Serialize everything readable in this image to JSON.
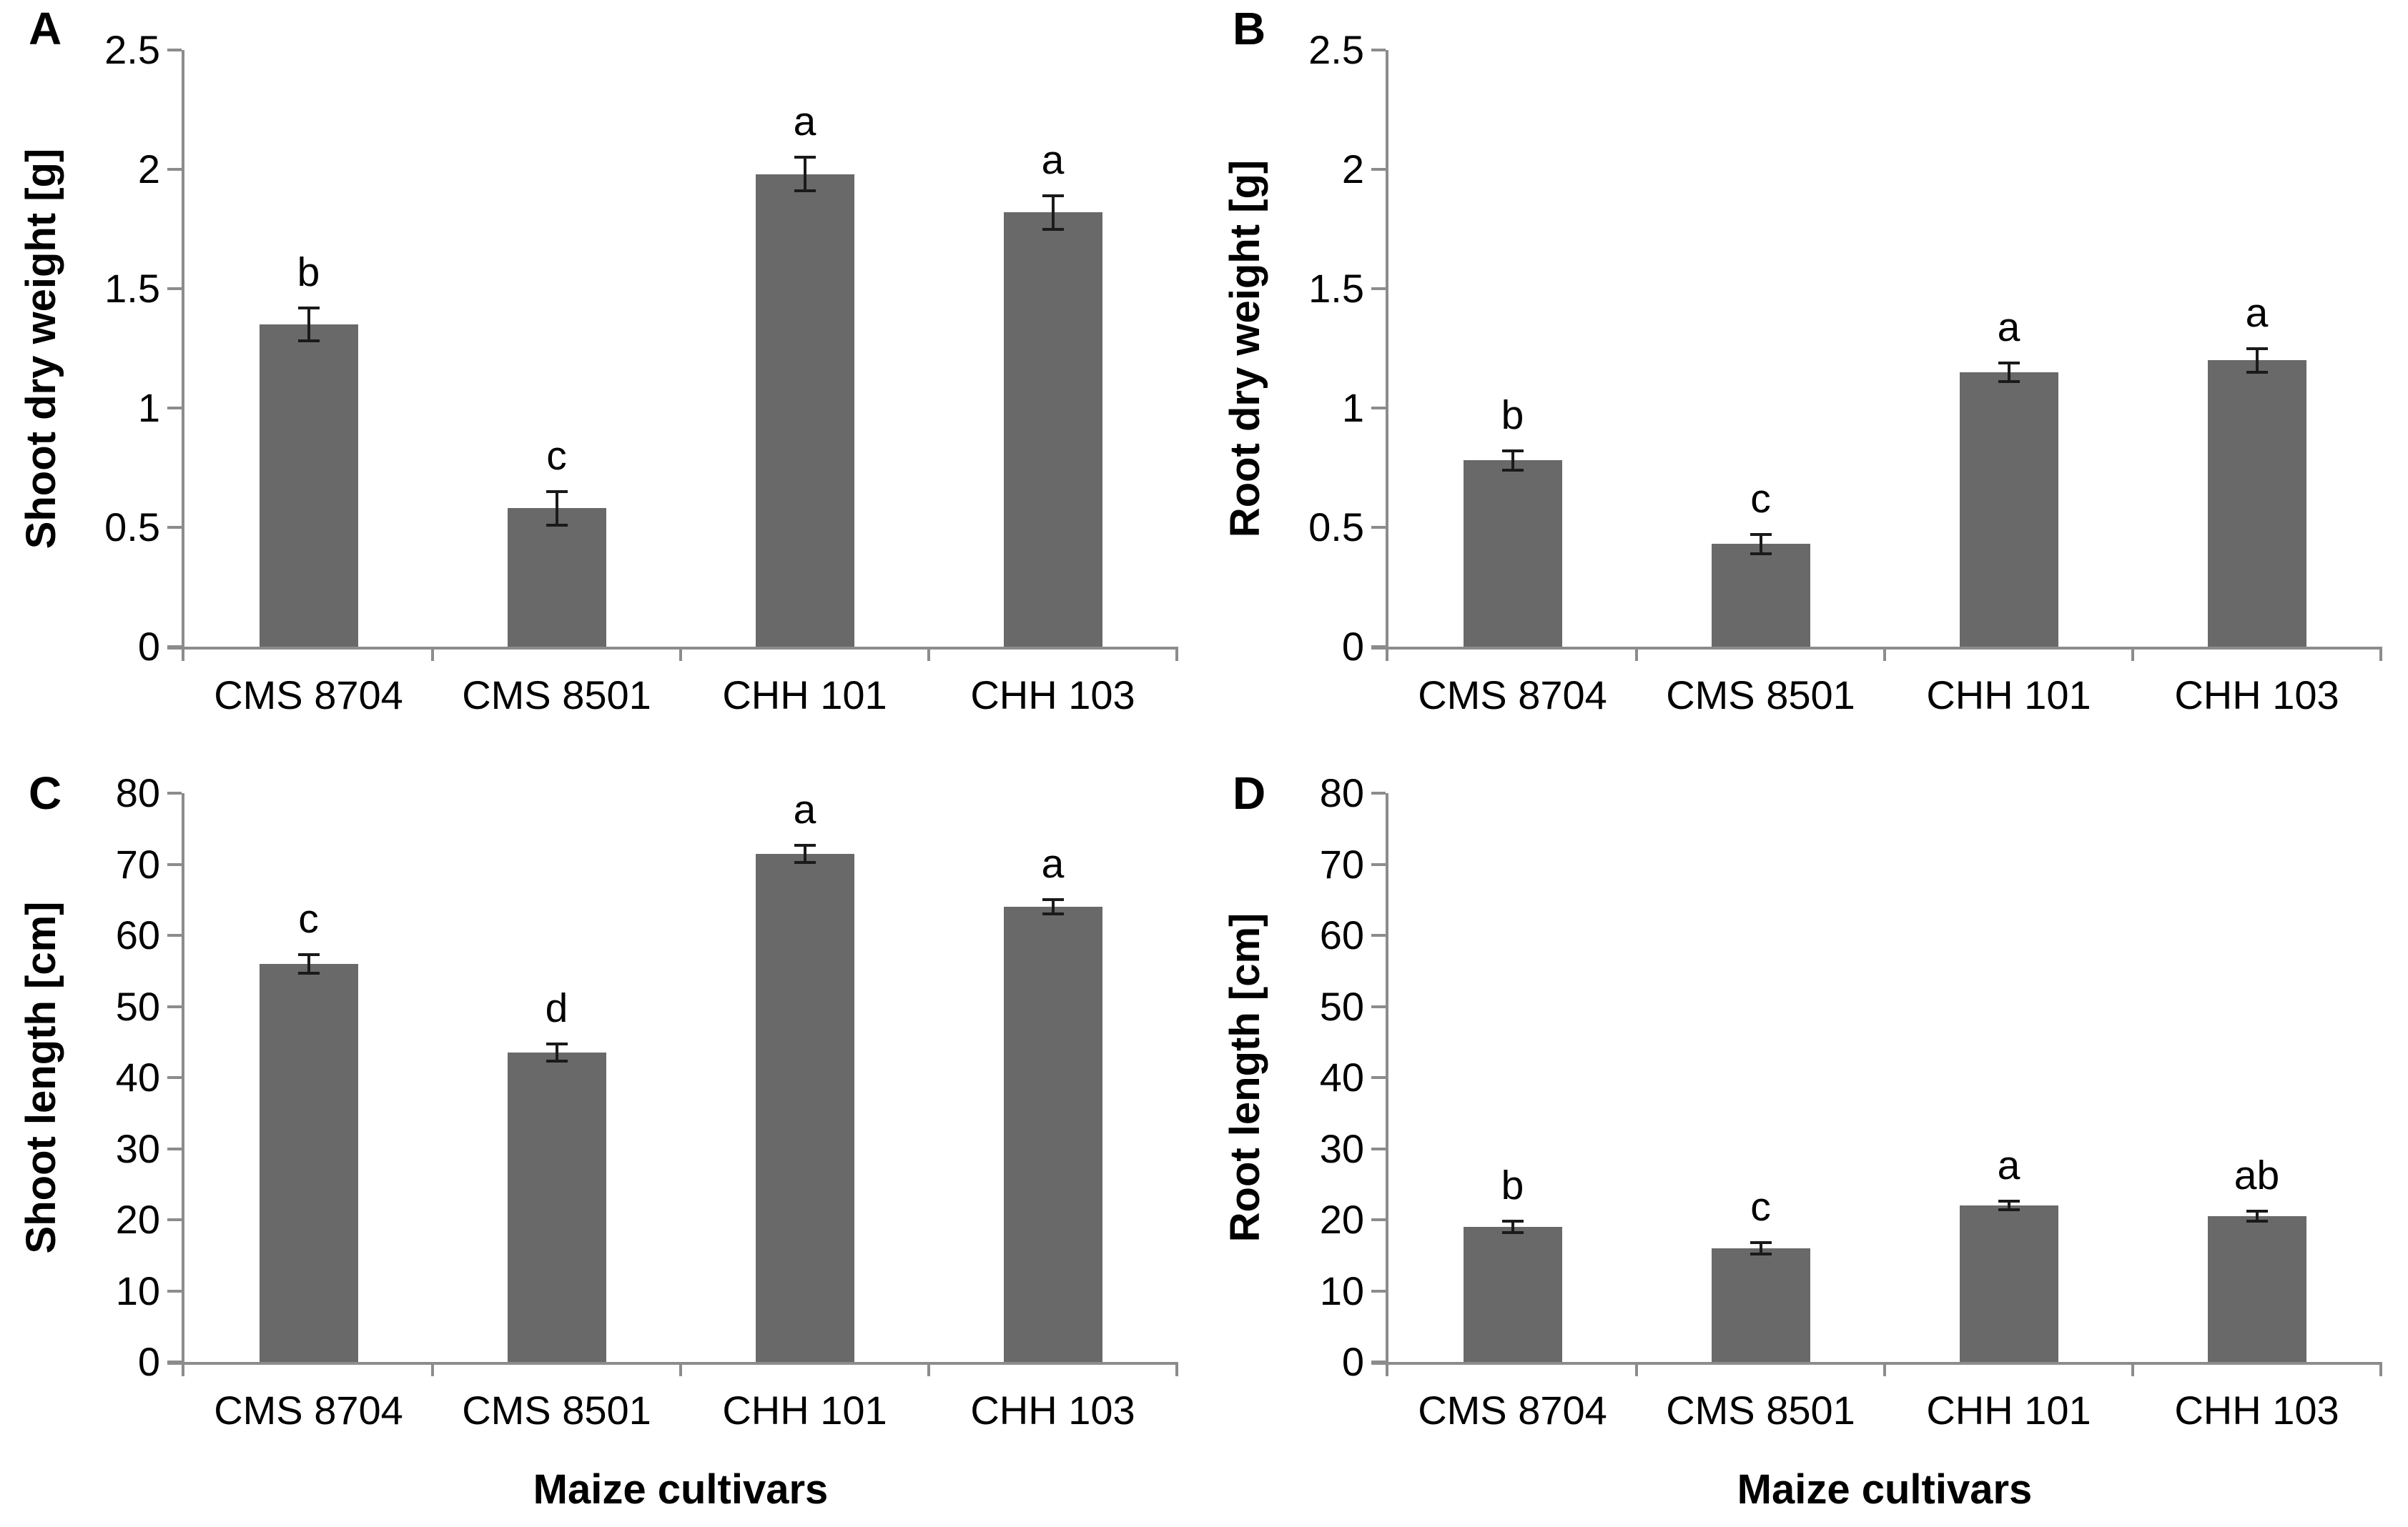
{
  "figure": {
    "background": "#ffffff",
    "bar_color": "#696969",
    "axis_color": "#8c8c8c",
    "error_bar_color": "#1a1a1a",
    "text_color": "#000000"
  },
  "chart_data": [
    {
      "type": "bar",
      "panel": "A",
      "title": "",
      "ylabel": "Shoot dry weight [g]",
      "xlabel": "",
      "categories": [
        "CMS 8704",
        "CMS 8501",
        "CHH 101",
        "CHH 103"
      ],
      "values": [
        1.35,
        0.58,
        1.98,
        1.82
      ],
      "errors": [
        0.07,
        0.07,
        0.07,
        0.07
      ],
      "sig_letters": [
        "b",
        "c",
        "a",
        "a"
      ],
      "ylim": [
        0,
        2.5
      ],
      "yticks": [
        0,
        0.5,
        1,
        1.5,
        2,
        2.5
      ],
      "grid": false,
      "legend": "none"
    },
    {
      "type": "bar",
      "panel": "B",
      "title": "",
      "ylabel": "Root dry weight [g]",
      "xlabel": "",
      "categories": [
        "CMS 8704",
        "CMS 8501",
        "CHH 101",
        "CHH 103"
      ],
      "values": [
        0.78,
        0.43,
        1.15,
        1.2
      ],
      "errors": [
        0.04,
        0.04,
        0.04,
        0.05
      ],
      "sig_letters": [
        "b",
        "c",
        "a",
        "a"
      ],
      "ylim": [
        0,
        2.5
      ],
      "yticks": [
        0,
        0.5,
        1,
        1.5,
        2,
        2.5
      ],
      "grid": false,
      "legend": "none"
    },
    {
      "type": "bar",
      "panel": "C",
      "title": "",
      "ylabel": "Shoot length [cm]",
      "xlabel": "Maize cultivars",
      "categories": [
        "CMS 8704",
        "CMS 8501",
        "CHH 101",
        "CHH 103"
      ],
      "values": [
        56,
        43.5,
        71.5,
        64
      ],
      "errors": [
        1.3,
        1.2,
        1.2,
        1.0
      ],
      "sig_letters": [
        "c",
        "d",
        "a",
        "a"
      ],
      "ylim": [
        0,
        80
      ],
      "yticks": [
        0,
        10,
        20,
        30,
        40,
        50,
        60,
        70,
        80
      ],
      "grid": false,
      "legend": "none"
    },
    {
      "type": "bar",
      "panel": "D",
      "title": "",
      "ylabel": "Root length [cm]",
      "xlabel": "Maize cultivars",
      "categories": [
        "CMS 8704",
        "CMS 8501",
        "CHH 101",
        "CHH 103"
      ],
      "values": [
        19,
        16,
        22,
        20.5
      ],
      "errors": [
        0.8,
        0.8,
        0.6,
        0.7
      ],
      "sig_letters": [
        "b",
        "c",
        "a",
        "ab"
      ],
      "ylim": [
        0,
        80
      ],
      "yticks": [
        0,
        10,
        20,
        30,
        40,
        50,
        60,
        70,
        80
      ],
      "grid": false,
      "legend": "none"
    }
  ]
}
